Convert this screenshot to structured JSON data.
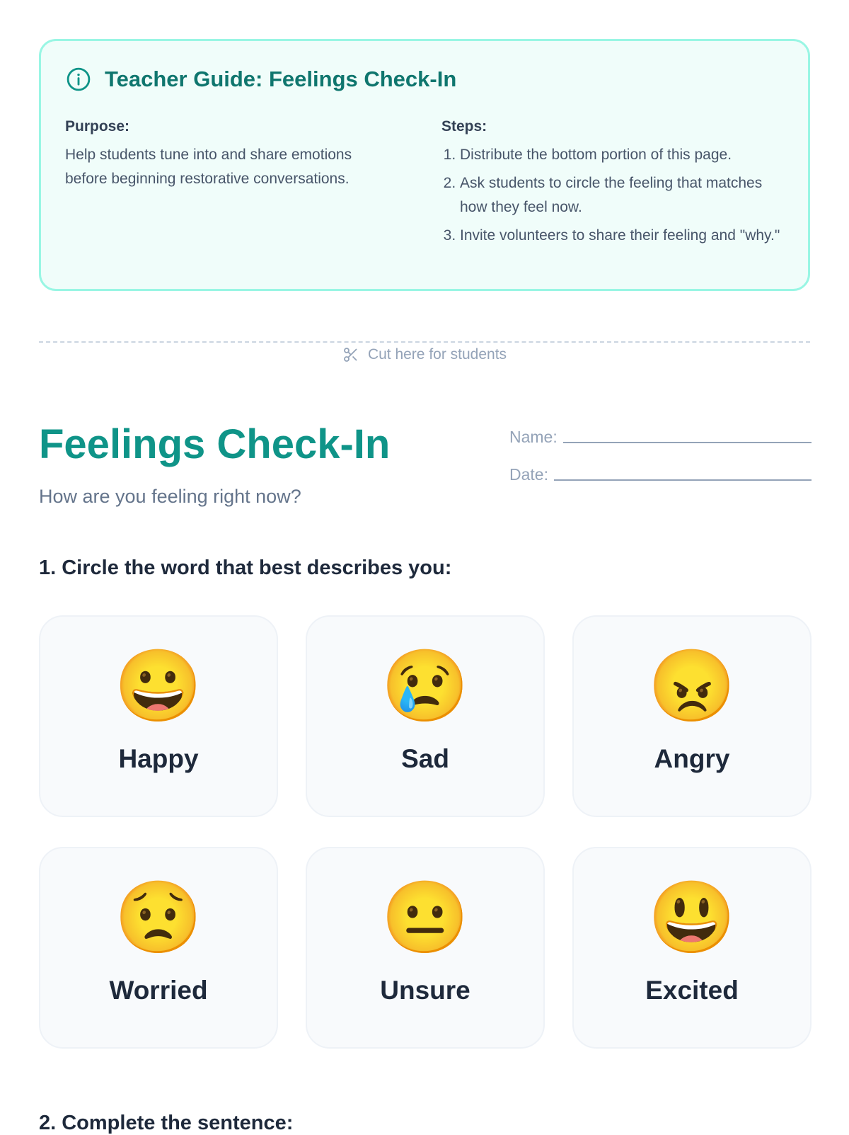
{
  "teacher_guide": {
    "title": "Teacher Guide: Feelings Check-In",
    "icon": "info-icon",
    "purpose_label": "Purpose:",
    "purpose_text": "Help students tune into and share emotions before beginning restorative conversations.",
    "steps_label": "Steps:",
    "steps": [
      "Distribute the bottom portion of this page.",
      "Ask students to circle the feeling that matches how they feel now.",
      "Invite volunteers to share their feeling and \"why.\""
    ]
  },
  "cut_line": {
    "icon": "scissors-icon",
    "label": "Cut here for students"
  },
  "worksheet": {
    "title": "Feelings Check-In",
    "subtitle": "How are you feeling right now?",
    "name_label": "Name:",
    "date_label": "Date:",
    "question1": "1. Circle the word that best describes you:",
    "feelings": [
      {
        "emoji": "😀",
        "label": "Happy"
      },
      {
        "emoji": "😢",
        "label": "Sad"
      },
      {
        "emoji": "😠",
        "label": "Angry"
      },
      {
        "emoji": "😟",
        "label": "Worried"
      },
      {
        "emoji": "😐",
        "label": "Unsure"
      },
      {
        "emoji": "😃",
        "label": "Excited"
      }
    ],
    "question2": "2. Complete the sentence:"
  },
  "colors": {
    "accent": "#0f9488",
    "guide_border": "#99f6e4",
    "guide_bg": "#f0fdfa"
  }
}
